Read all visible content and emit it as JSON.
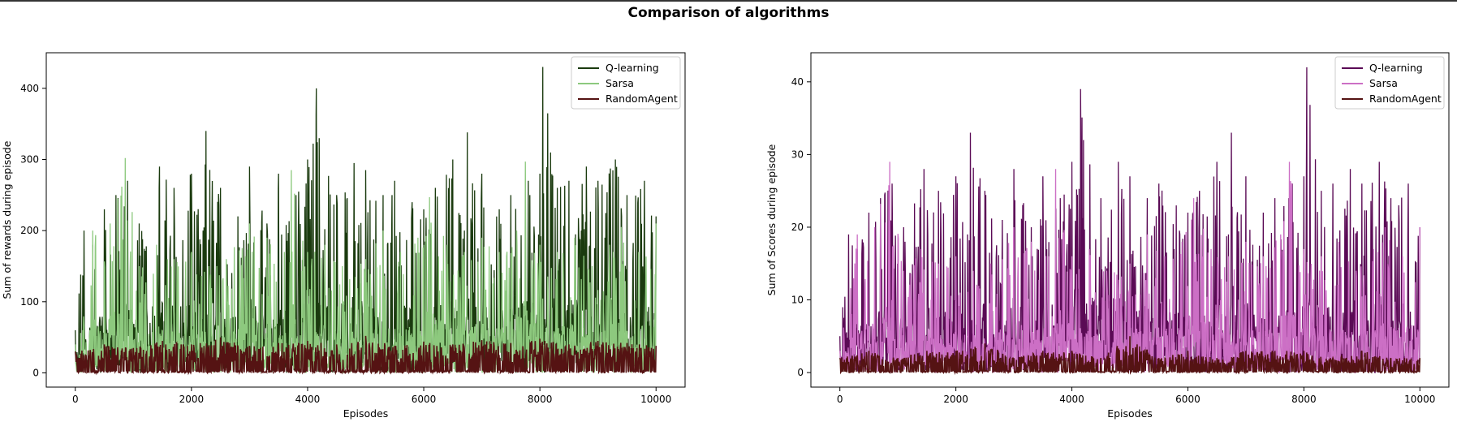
{
  "figure": {
    "title": "Comparison of algorithms"
  },
  "chart_data": [
    {
      "type": "line",
      "title": "",
      "xlabel": "Episodes",
      "ylabel": "Sum of rewards during episode",
      "xlim": [
        -500,
        10500
      ],
      "ylim": [
        -20,
        450
      ],
      "xticks": [
        0,
        2000,
        4000,
        6000,
        8000,
        10000
      ],
      "yticks": [
        0,
        100,
        200,
        300,
        400
      ],
      "grid": false,
      "legend_position": "top-right",
      "series": [
        {
          "name": "Q-learning",
          "color": "#1a3a0e",
          "x": [
            0,
            150,
            300,
            500,
            700,
            900,
            1100,
            1450,
            1700,
            2000,
            2200,
            2250,
            2500,
            2800,
            3000,
            3300,
            3500,
            3800,
            4000,
            4150,
            4200,
            4500,
            4800,
            5000,
            5300,
            5500,
            5800,
            6000,
            6200,
            6500,
            6700,
            6750,
            7000,
            7300,
            7500,
            7800,
            8000,
            8050,
            8300,
            8500,
            8800,
            9000,
            9300,
            9500,
            9800,
            10000
          ],
          "y": [
            60,
            200,
            180,
            230,
            250,
            270,
            210,
            290,
            260,
            280,
            200,
            340,
            260,
            220,
            290,
            210,
            280,
            250,
            300,
            400,
            330,
            250,
            295,
            285,
            250,
            270,
            240,
            230,
            260,
            300,
            200,
            338,
            280,
            230,
            250,
            270,
            280,
            430,
            260,
            270,
            290,
            270,
            300,
            250,
            270,
            220
          ]
        },
        {
          "name": "Sarsa",
          "color": "#8dc97e",
          "x": [
            0,
            300,
            600,
            860,
            1100,
            1400,
            1700,
            2000,
            2300,
            2600,
            3000,
            3300,
            3600,
            3720,
            4000,
            4300,
            4600,
            5000,
            5300,
            5600,
            5900,
            6100,
            6400,
            6700,
            7000,
            7300,
            7600,
            7750,
            8000,
            8300,
            8600,
            8900,
            9200,
            9400,
            9700,
            10000
          ],
          "y": [
            40,
            200,
            210,
            302,
            150,
            180,
            160,
            170,
            150,
            160,
            210,
            190,
            170,
            285,
            170,
            180,
            150,
            160,
            200,
            170,
            190,
            247,
            180,
            170,
            190,
            170,
            200,
            297,
            180,
            170,
            190,
            150,
            180,
            205,
            170,
            210
          ]
        },
        {
          "name": "RandomAgent",
          "color": "#551313",
          "x": [
            0,
            500,
            1000,
            1500,
            2000,
            2500,
            3000,
            3500,
            4000,
            4500,
            5000,
            5500,
            6000,
            6500,
            7000,
            7500,
            8000,
            8500,
            9000,
            9500,
            10000
          ],
          "y": [
            30,
            40,
            35,
            45,
            40,
            50,
            38,
            42,
            45,
            40,
            52,
            38,
            44,
            40,
            46,
            42,
            48,
            40,
            45,
            42,
            38
          ]
        }
      ]
    },
    {
      "type": "line",
      "title": "",
      "xlabel": "Episodes",
      "ylabel": "Sum of Scores during episode",
      "xlim": [
        -500,
        10500
      ],
      "ylim": [
        -2,
        44
      ],
      "xticks": [
        0,
        2000,
        4000,
        6000,
        8000,
        10000
      ],
      "yticks": [
        0,
        10,
        20,
        30,
        40
      ],
      "grid": false,
      "legend_position": "top-right",
      "series": [
        {
          "name": "Q-learning",
          "color": "#5a0a55",
          "x": [
            0,
            50,
            150,
            300,
            500,
            700,
            900,
            1100,
            1450,
            1700,
            2000,
            2200,
            2250,
            2500,
            2800,
            3000,
            3300,
            3500,
            3800,
            4000,
            4150,
            4200,
            4500,
            4800,
            5000,
            5300,
            5500,
            5800,
            6000,
            6200,
            6500,
            6700,
            6750,
            7000,
            7300,
            7500,
            7800,
            8000,
            8050,
            8300,
            8500,
            8800,
            9000,
            9300,
            9500,
            9800,
            10000
          ],
          "y": [
            5,
            9,
            19,
            17,
            22,
            24,
            26,
            20,
            28,
            25,
            27,
            19,
            33,
            25,
            21,
            28,
            20,
            27,
            24,
            29,
            39,
            32,
            24,
            29,
            27,
            24,
            26,
            23,
            22,
            25,
            29,
            19,
            33,
            27,
            22,
            24,
            26,
            27,
            42,
            25,
            26,
            28,
            26,
            29,
            24,
            26,
            20
          ]
        },
        {
          "name": "Sarsa",
          "color": "#cc6fc5",
          "x": [
            0,
            300,
            600,
            860,
            1100,
            1400,
            1700,
            2000,
            2300,
            2600,
            3000,
            3300,
            3600,
            3720,
            4000,
            4300,
            4600,
            5000,
            5300,
            5600,
            5900,
            6100,
            6400,
            6700,
            7000,
            7300,
            7600,
            7750,
            8000,
            8300,
            8600,
            8900,
            9200,
            9400,
            9700,
            10000
          ],
          "y": [
            3,
            19,
            20,
            29,
            14,
            17,
            15,
            16,
            14,
            15,
            20,
            18,
            16,
            28,
            16,
            17,
            14,
            15,
            19,
            16,
            18,
            24,
            17,
            16,
            18,
            16,
            19,
            29,
            17,
            16,
            18,
            14,
            17,
            20,
            16,
            20
          ]
        },
        {
          "name": "RandomAgent",
          "color": "#551313",
          "x": [
            0,
            500,
            1000,
            1500,
            2000,
            2500,
            3000,
            3500,
            4000,
            4500,
            5000,
            5500,
            6000,
            6500,
            7000,
            7500,
            8000,
            8500,
            9000,
            9500,
            10000
          ],
          "y": [
            2,
            3,
            2,
            3,
            3,
            4,
            2,
            3,
            3,
            2,
            5,
            2,
            3,
            2,
            3,
            3,
            3,
            2,
            3,
            2,
            2
          ]
        }
      ]
    }
  ]
}
